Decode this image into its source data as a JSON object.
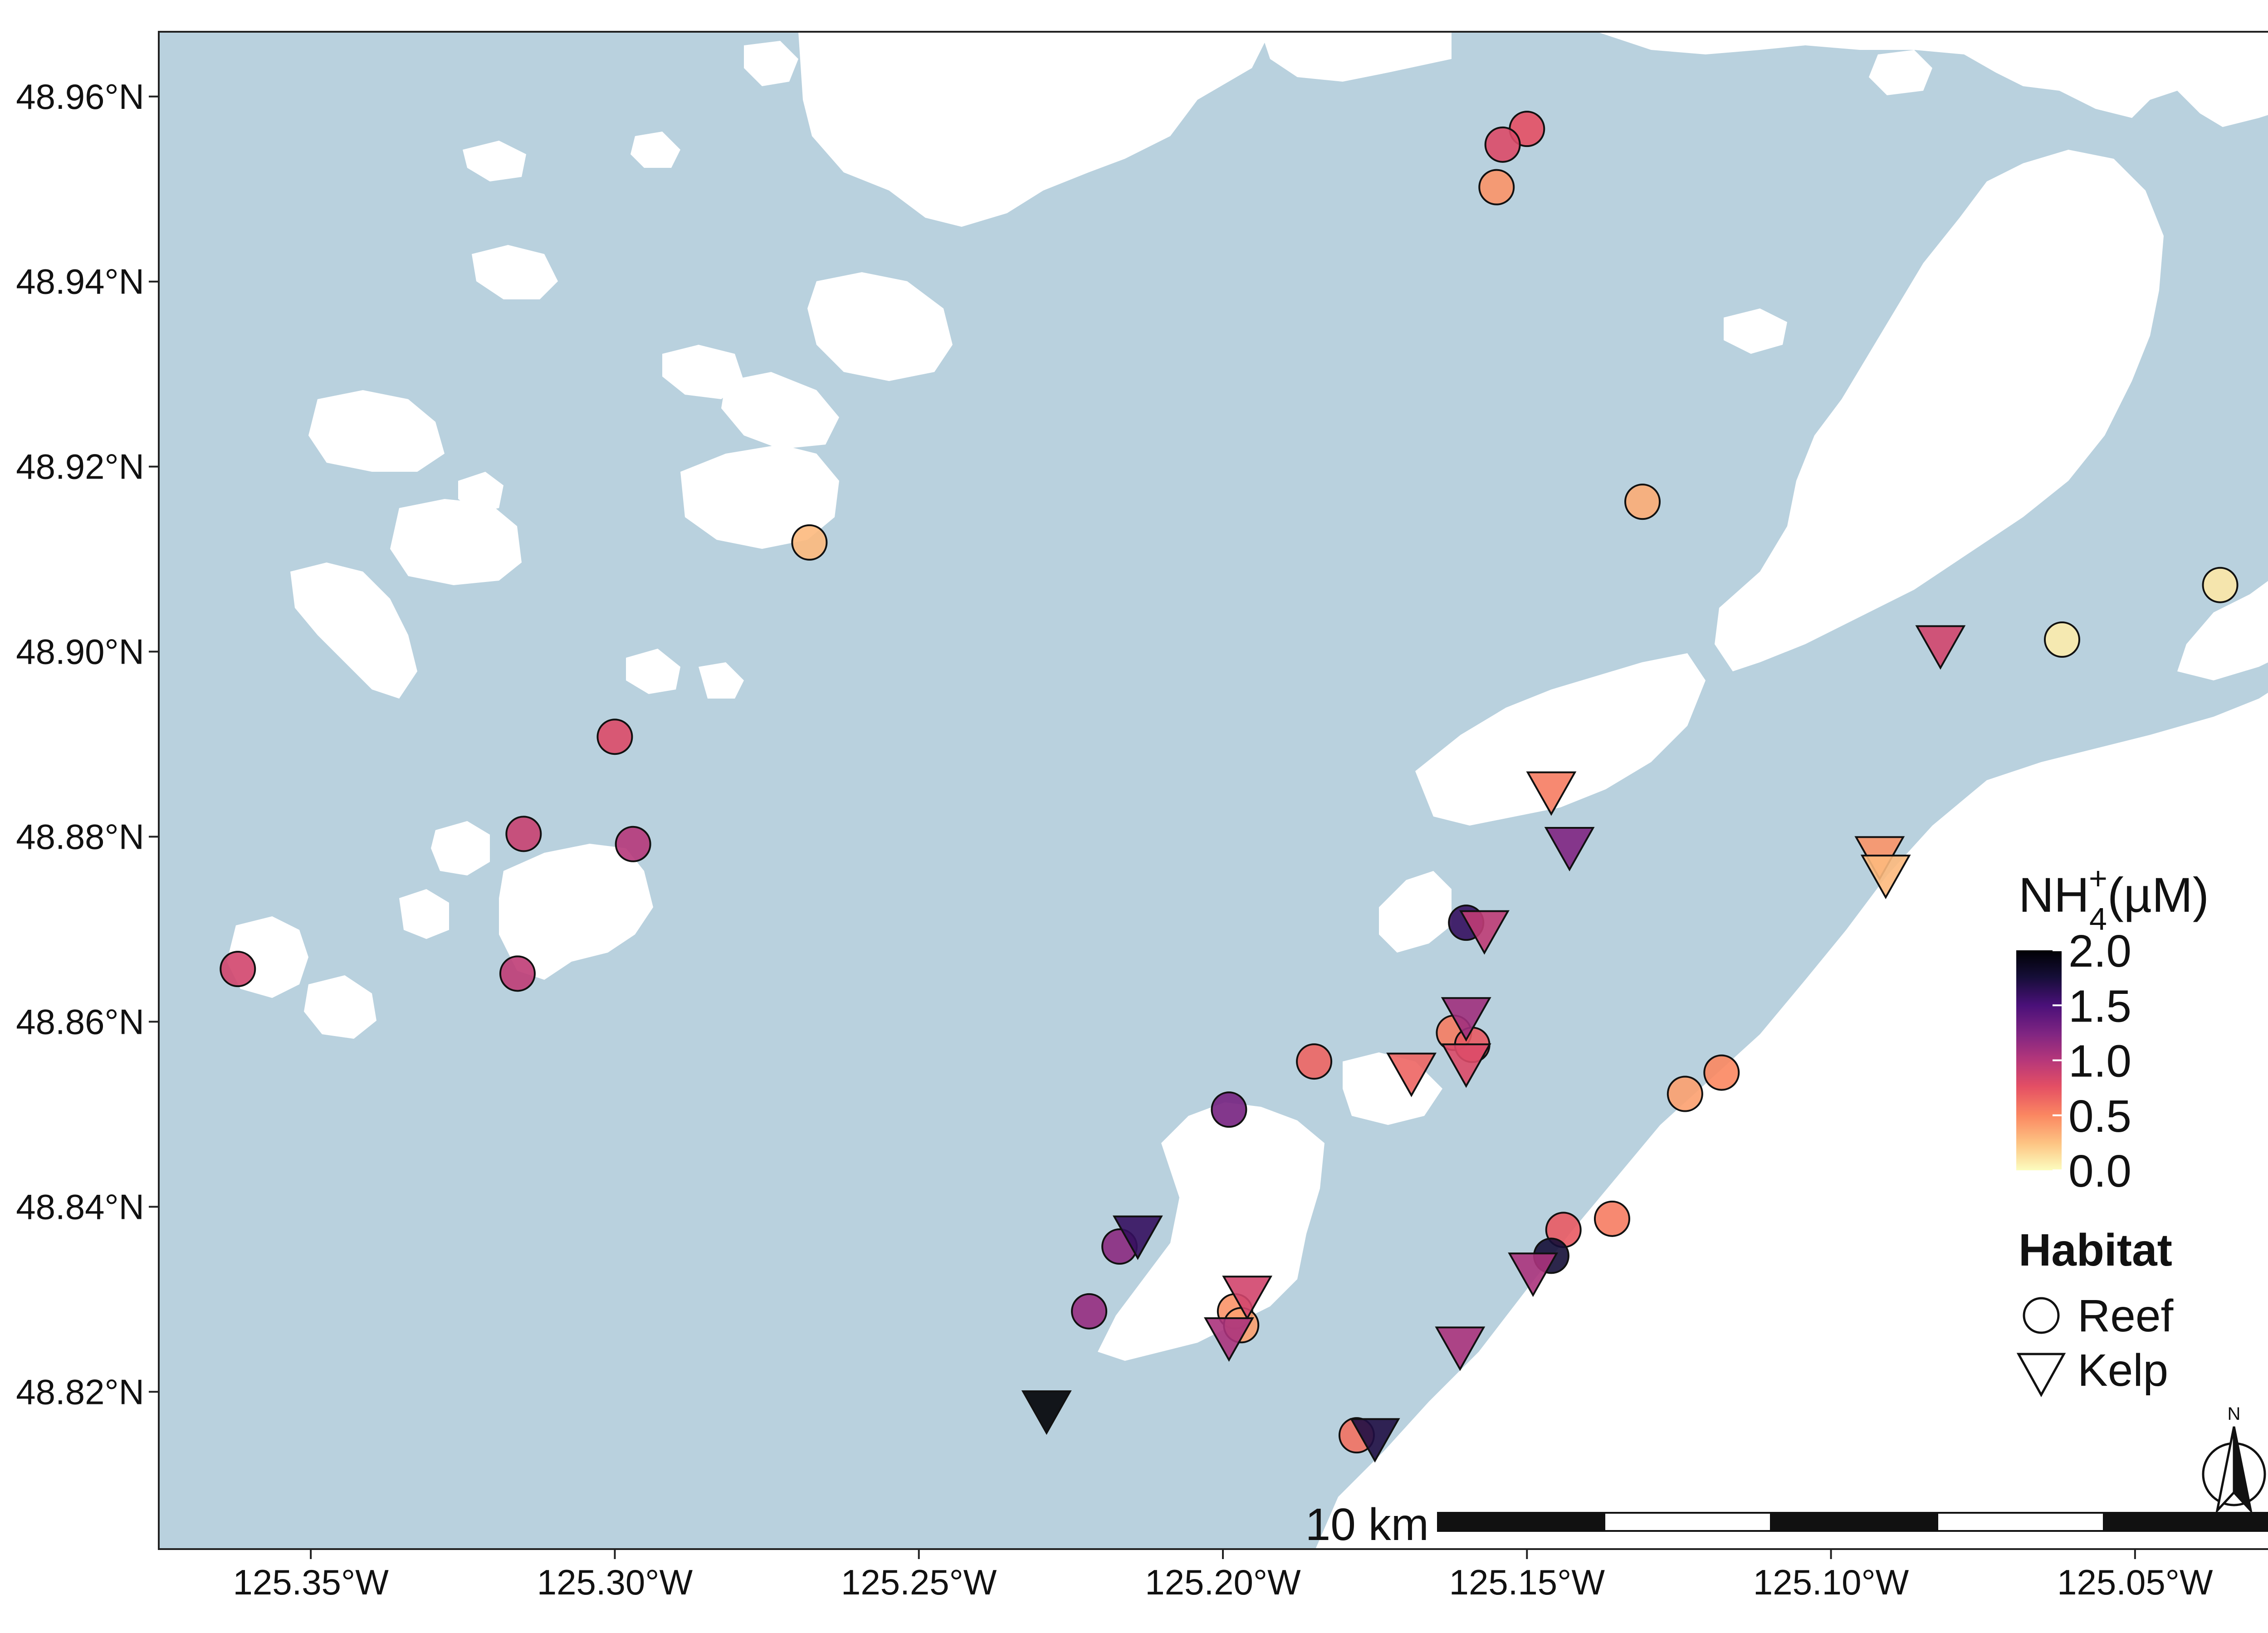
{
  "chart_data": {
    "type": "scatter",
    "title": "",
    "xlabel": "",
    "ylabel": "",
    "xlim": [
      -125.375,
      -125.025
    ],
    "ylim": [
      48.803,
      48.967
    ],
    "x_ticks": [
      {
        "value": -125.35,
        "label": "125.35°W"
      },
      {
        "value": -125.3,
        "label": "125.30°W"
      },
      {
        "value": -125.25,
        "label": "125.25°W"
      },
      {
        "value": -125.2,
        "label": "125.20°W"
      },
      {
        "value": -125.15,
        "label": "125.15°W"
      },
      {
        "value": -125.1,
        "label": "125.10°W"
      },
      {
        "value": -125.05,
        "label": "125.05°W"
      }
    ],
    "y_ticks": [
      {
        "value": 48.82,
        "label": "48.82°N"
      },
      {
        "value": 48.84,
        "label": "48.84°N"
      },
      {
        "value": 48.86,
        "label": "48.86°N"
      },
      {
        "value": 48.88,
        "label": "48.88°N"
      },
      {
        "value": 48.9,
        "label": "48.90°N"
      },
      {
        "value": 48.92,
        "label": "48.92°N"
      },
      {
        "value": 48.94,
        "label": "48.94°N"
      },
      {
        "value": 48.96,
        "label": "48.96°N"
      }
    ],
    "grid": false,
    "colors": {
      "water": "#b9d1de",
      "land": "#ffffff",
      "colormap": "magma_r",
      "colormap_stops": [
        "#fcfdbf",
        "#fdc584",
        "#fb8761",
        "#e44f64",
        "#b6377a",
        "#802582",
        "#4a1079",
        "#150e37",
        "#000004"
      ]
    },
    "color_scale": {
      "min": 0.0,
      "max": 2.0
    },
    "series": [
      {
        "name": "Reef",
        "marker": "circle",
        "points": [
          {
            "lon": -125.15,
            "lat": 48.9565,
            "nh4": 0.75
          },
          {
            "lon": -125.154,
            "lat": 48.9548,
            "nh4": 0.8
          },
          {
            "lon": -125.155,
            "lat": 48.9502,
            "nh4": 0.45
          },
          {
            "lon": -125.131,
            "lat": 48.9162,
            "nh4": 0.35
          },
          {
            "lon": -125.268,
            "lat": 48.9118,
            "nh4": 0.3
          },
          {
            "lon": -125.036,
            "lat": 48.9072,
            "nh4": 0.1
          },
          {
            "lon": -125.062,
            "lat": 48.9013,
            "nh4": 0.08
          },
          {
            "lon": -125.3,
            "lat": 48.8908,
            "nh4": 0.8
          },
          {
            "lon": -125.315,
            "lat": 48.8803,
            "nh4": 0.9
          },
          {
            "lon": -125.297,
            "lat": 48.8792,
            "nh4": 1.0
          },
          {
            "lon": -125.362,
            "lat": 48.8657,
            "nh4": 0.85
          },
          {
            "lon": -125.316,
            "lat": 48.8652,
            "nh4": 0.95
          },
          {
            "lon": -125.16,
            "lat": 48.8707,
            "nh4": 1.6
          },
          {
            "lon": -125.162,
            "lat": 48.8588,
            "nh4": 0.55
          },
          {
            "lon": -125.159,
            "lat": 48.8575,
            "nh4": 0.7
          },
          {
            "lon": -125.185,
            "lat": 48.8557,
            "nh4": 0.65
          },
          {
            "lon": -125.118,
            "lat": 48.8545,
            "nh4": 0.5
          },
          {
            "lon": -125.124,
            "lat": 48.8522,
            "nh4": 0.4
          },
          {
            "lon": -125.199,
            "lat": 48.8505,
            "nh4": 1.3
          },
          {
            "lon": -125.136,
            "lat": 48.8387,
            "nh4": 0.55
          },
          {
            "lon": -125.144,
            "lat": 48.8375,
            "nh4": 0.7
          },
          {
            "lon": -125.146,
            "lat": 48.8347,
            "nh4": 1.75
          },
          {
            "lon": -125.217,
            "lat": 48.8357,
            "nh4": 1.2
          },
          {
            "lon": -125.222,
            "lat": 48.8287,
            "nh4": 1.15
          },
          {
            "lon": -125.198,
            "lat": 48.8287,
            "nh4": 0.45
          },
          {
            "lon": -125.197,
            "lat": 48.8272,
            "nh4": 0.4
          },
          {
            "lon": -125.178,
            "lat": 48.8153,
            "nh4": 0.6
          }
        ]
      },
      {
        "name": "Kelp",
        "marker": "triangle-down",
        "points": [
          {
            "lon": -125.082,
            "lat": 48.9005,
            "nh4": 0.85
          },
          {
            "lon": -125.146,
            "lat": 48.8847,
            "nh4": 0.55
          },
          {
            "lon": -125.143,
            "lat": 48.8787,
            "nh4": 1.25
          },
          {
            "lon": -125.092,
            "lat": 48.8777,
            "nh4": 0.45
          },
          {
            "lon": -125.091,
            "lat": 48.8757,
            "nh4": 0.3
          },
          {
            "lon": -125.157,
            "lat": 48.8697,
            "nh4": 0.95
          },
          {
            "lon": -125.16,
            "lat": 48.8603,
            "nh4": 1.1
          },
          {
            "lon": -125.16,
            "lat": 48.8553,
            "nh4": 0.8
          },
          {
            "lon": -125.169,
            "lat": 48.8543,
            "nh4": 0.65
          },
          {
            "lon": -125.214,
            "lat": 48.8367,
            "nh4": 1.6
          },
          {
            "lon": -125.149,
            "lat": 48.8327,
            "nh4": 1.05
          },
          {
            "lon": -125.196,
            "lat": 48.8302,
            "nh4": 0.85
          },
          {
            "lon": -125.199,
            "lat": 48.8257,
            "nh4": 1.05
          },
          {
            "lon": -125.161,
            "lat": 48.8247,
            "nh4": 1.05
          },
          {
            "lon": -125.229,
            "lat": 48.8178,
            "nh4": 2.0
          },
          {
            "lon": -125.175,
            "lat": 48.8148,
            "nh4": 1.7
          }
        ]
      }
    ],
    "legend": {
      "placement": "right",
      "color_title_main": "NH",
      "color_title_sub": "4",
      "color_title_sup": "+",
      "color_title_unit": "(µM)",
      "color_ticks": [
        "2.0",
        "1.5",
        "1.0",
        "0.5",
        "0.0"
      ],
      "color_tick_values": [
        2.0,
        1.5,
        1.0,
        0.5,
        0.0
      ],
      "shape_title": "Habitat",
      "shape_items": [
        "Reef",
        "Kelp"
      ]
    },
    "scale_bar": {
      "label": "10 km",
      "segments": 5
    },
    "north_arrow": {
      "label": "N"
    }
  }
}
